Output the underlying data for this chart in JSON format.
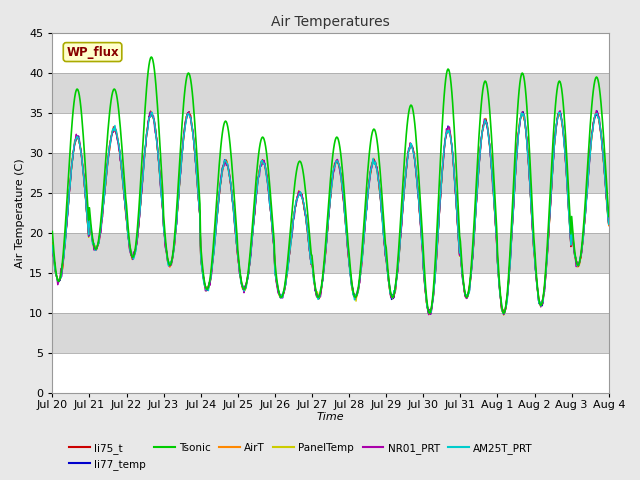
{
  "title": "Air Temperatures",
  "xlabel": "Time",
  "ylabel": "Air Temperature (C)",
  "ylim": [
    0,
    45
  ],
  "yticks": [
    0,
    5,
    10,
    15,
    20,
    25,
    30,
    35,
    40,
    45
  ],
  "series": {
    "li75_t": {
      "color": "#cc0000",
      "lw": 1.0
    },
    "li77_temp": {
      "color": "#0000cc",
      "lw": 1.0
    },
    "Tsonic": {
      "color": "#00cc00",
      "lw": 1.2
    },
    "AirT": {
      "color": "#ff8800",
      "lw": 1.0
    },
    "PanelTemp": {
      "color": "#cccc00",
      "lw": 1.0
    },
    "NR01_PRT": {
      "color": "#aa00aa",
      "lw": 1.0
    },
    "AM25T_PRT": {
      "color": "#00cccc",
      "lw": 1.0
    }
  },
  "legend_label": "WP_flux",
  "legend_facecolor": "#ffffcc",
  "legend_edgecolor": "#aaaa00",
  "legend_textcolor": "#880000",
  "fig_facecolor": "#e8e8e8",
  "band_colors": [
    "#ffffff",
    "#d8d8d8"
  ],
  "tsonic_maxs": [
    38,
    38,
    42,
    40,
    34,
    32,
    29,
    32,
    33,
    36,
    40.5,
    39,
    40,
    39,
    39.5
  ],
  "tsonic_mins": [
    14,
    18,
    17,
    16,
    13,
    13,
    12,
    12,
    12,
    12,
    10,
    12,
    10,
    11,
    16
  ],
  "base_maxs": [
    32,
    33,
    35,
    35,
    29,
    29,
    25,
    29,
    29,
    31,
    33,
    34,
    35,
    35,
    35
  ],
  "base_mins": [
    14,
    18,
    17,
    16,
    13,
    13,
    12,
    12,
    12,
    12,
    10,
    12,
    10,
    11,
    16
  ]
}
